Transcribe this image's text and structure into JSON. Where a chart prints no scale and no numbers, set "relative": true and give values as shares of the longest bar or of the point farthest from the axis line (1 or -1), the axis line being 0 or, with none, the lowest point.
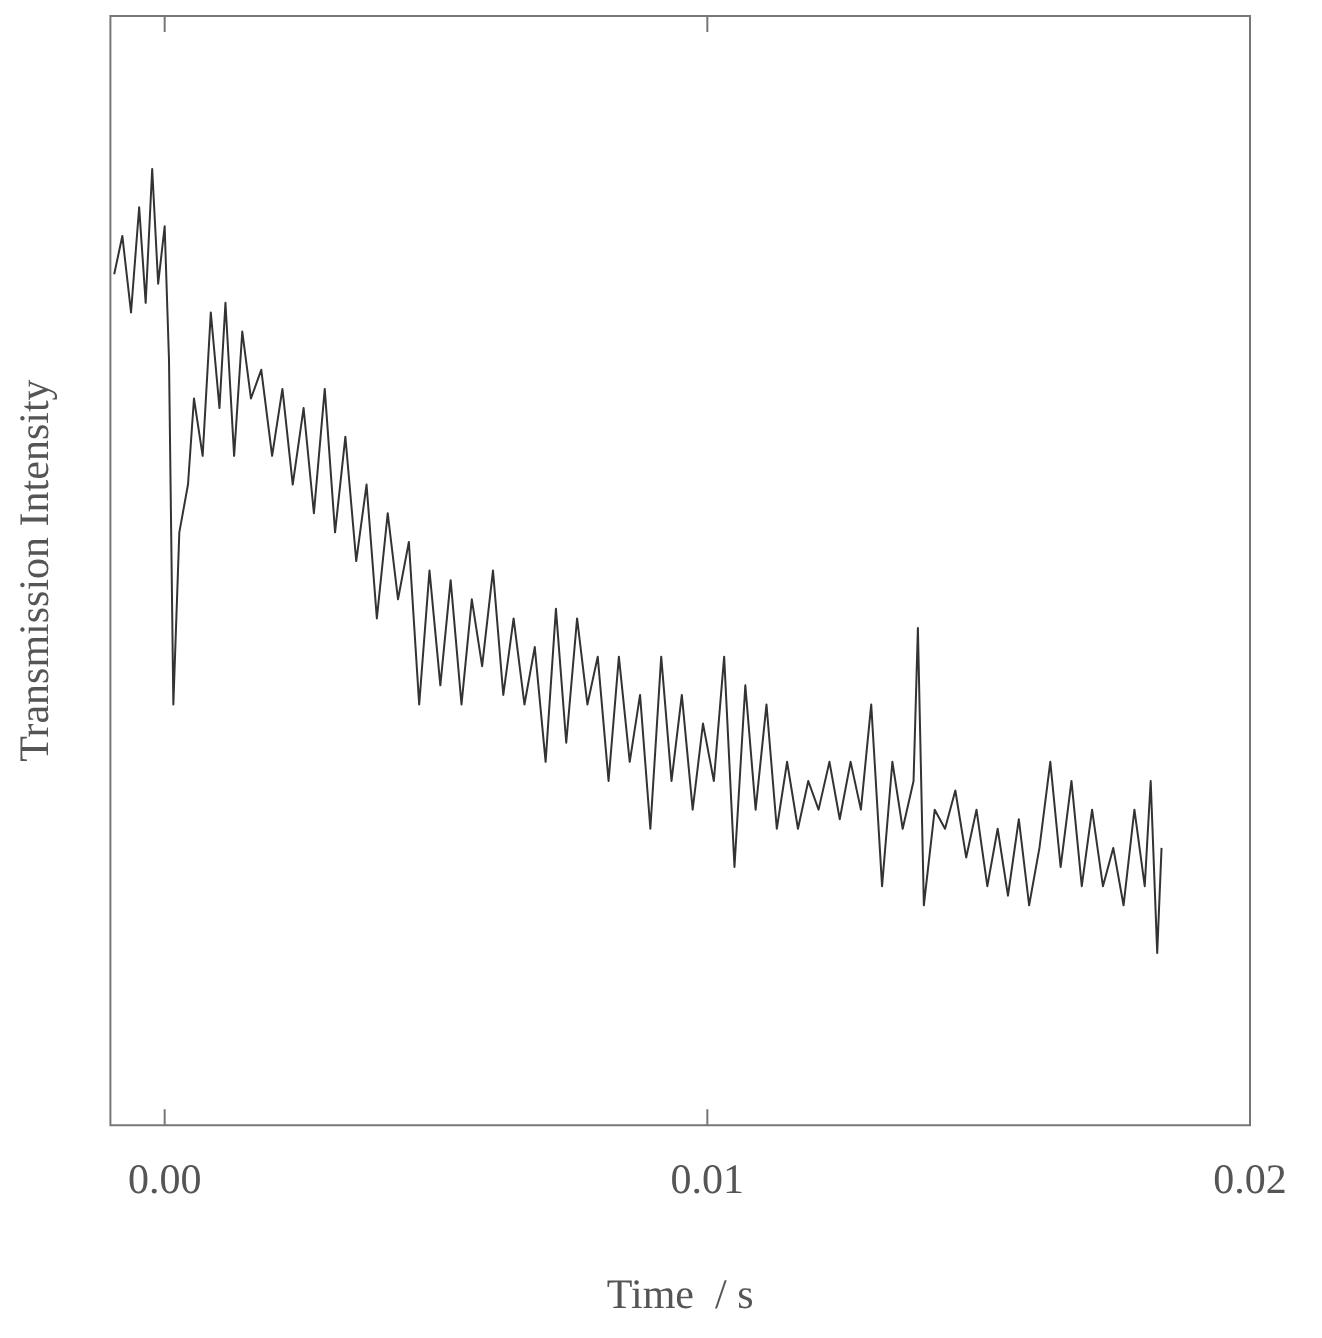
{
  "chart_data": {
    "type": "line",
    "xlabel": "Time  / s",
    "ylabel": "Transmission Intensity",
    "relative": true,
    "xlim": [
      -0.001,
      0.02
    ],
    "xticks": [
      {
        "value": 0,
        "label": "0.00"
      },
      {
        "value": 0.01,
        "label": "0.01"
      },
      {
        "value": 0.02,
        "label": "0.02"
      }
    ],
    "grid": false,
    "legend": false,
    "marker": "none",
    "line_style": "solid",
    "series": [
      {
        "color": "#333333",
        "x": [
          -0.00093,
          -0.00078,
          -0.00062,
          -0.00047,
          -0.00035,
          -0.00023,
          -0.00012,
          0,
          8e-05,
          0.00016,
          0.00027,
          0.00043,
          0.00054,
          0.0007,
          0.00085,
          0.00101,
          0.00112,
          0.00128,
          0.00143,
          0.00159,
          0.00178,
          0.00198,
          0.00217,
          0.00236,
          0.00256,
          0.00275,
          0.00295,
          0.00314,
          0.00333,
          0.00353,
          0.00372,
          0.00391,
          0.00411,
          0.0043,
          0.0045,
          0.00469,
          0.00488,
          0.00508,
          0.00527,
          0.00547,
          0.00566,
          0.00585,
          0.00605,
          0.00624,
          0.00643,
          0.00663,
          0.00682,
          0.00702,
          0.00721,
          0.0074,
          0.0076,
          0.00779,
          0.00798,
          0.00818,
          0.00837,
          0.00857,
          0.00876,
          0.00895,
          0.00915,
          0.00934,
          0.00953,
          0.00973,
          0.00992,
          0.01012,
          0.01031,
          0.0105,
          0.0107,
          0.01089,
          0.01109,
          0.01128,
          0.01147,
          0.01167,
          0.01186,
          0.01205,
          0.01225,
          0.01244,
          0.01264,
          0.01283,
          0.01302,
          0.01322,
          0.01341,
          0.0136,
          0.0138,
          0.01388,
          0.01399,
          0.01419,
          0.01438,
          0.01457,
          0.01477,
          0.01496,
          0.01516,
          0.01535,
          0.01554,
          0.01574,
          0.01593,
          0.01612,
          0.01632,
          0.01651,
          0.01671,
          0.0169,
          0.01709,
          0.01729,
          0.01748,
          0.01767,
          0.01787,
          0.01806,
          0.01817,
          0.01829,
          0.01837
        ],
        "values": [
          0.89,
          0.93,
          0.85,
          0.96,
          0.86,
          1.0,
          0.88,
          0.94,
          0.8,
          0.44,
          0.62,
          0.67,
          0.76,
          0.7,
          0.85,
          0.75,
          0.86,
          0.7,
          0.83,
          0.76,
          0.79,
          0.7,
          0.77,
          0.67,
          0.75,
          0.64,
          0.77,
          0.62,
          0.72,
          0.59,
          0.67,
          0.53,
          0.64,
          0.55,
          0.61,
          0.44,
          0.58,
          0.46,
          0.57,
          0.44,
          0.55,
          0.48,
          0.58,
          0.45,
          0.53,
          0.44,
          0.5,
          0.38,
          0.54,
          0.4,
          0.53,
          0.44,
          0.49,
          0.36,
          0.49,
          0.38,
          0.45,
          0.31,
          0.49,
          0.36,
          0.45,
          0.33,
          0.42,
          0.36,
          0.49,
          0.27,
          0.46,
          0.33,
          0.44,
          0.31,
          0.38,
          0.31,
          0.36,
          0.33,
          0.38,
          0.32,
          0.38,
          0.33,
          0.44,
          0.25,
          0.38,
          0.31,
          0.36,
          0.52,
          0.23,
          0.33,
          0.31,
          0.35,
          0.28,
          0.33,
          0.25,
          0.31,
          0.24,
          0.32,
          0.23,
          0.29,
          0.38,
          0.27,
          0.36,
          0.25,
          0.33,
          0.25,
          0.29,
          0.23,
          0.33,
          0.25,
          0.36,
          0.18,
          0.29
        ]
      }
    ]
  }
}
